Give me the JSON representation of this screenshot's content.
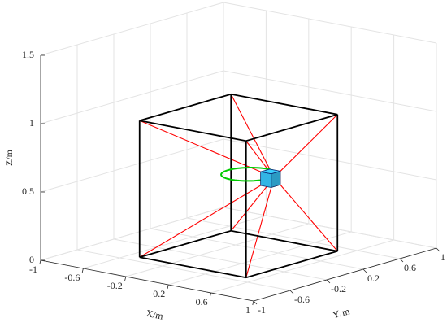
{
  "chart_data": {
    "type": "line3d",
    "xlabel": "X/m",
    "ylabel": "Y/m",
    "zlabel": "Z/m",
    "xlim": [
      -1,
      1
    ],
    "ylim": [
      -1,
      1
    ],
    "zlim": [
      0,
      1.5
    ],
    "xticks": [
      -1,
      -0.6,
      -0.2,
      0.2,
      0.6,
      1
    ],
    "yticks": [
      -1,
      -0.6,
      -0.2,
      0.2,
      0.6,
      1
    ],
    "zticks": [
      0,
      0.5,
      1,
      1.5
    ],
    "grid": true,
    "frame": {
      "color": "#000000",
      "x": [
        -0.5,
        0.5,
        0.5,
        -0.5,
        -0.5,
        null,
        -0.5,
        0.5,
        0.5,
        -0.5,
        -0.5,
        null,
        -0.5,
        -0.5,
        null,
        0.5,
        0.5,
        null,
        0.5,
        0.5,
        null,
        -0.5,
        -0.5
      ],
      "y": [
        -0.5,
        -0.5,
        0.5,
        0.5,
        -0.5,
        null,
        -0.5,
        -0.5,
        0.5,
        0.5,
        -0.5,
        null,
        -0.5,
        -0.5,
        null,
        -0.5,
        -0.5,
        null,
        0.5,
        0.5,
        null,
        0.5,
        0.5
      ],
      "z": [
        0,
        0,
        0,
        0,
        0,
        null,
        1,
        1,
        1,
        1,
        1,
        null,
        0,
        1,
        null,
        0,
        1,
        null,
        0,
        1,
        null,
        0,
        1
      ]
    },
    "cables": {
      "color": "#ff0000",
      "x": [
        -0.5,
        0.25,
        null,
        0.5,
        0.35,
        null,
        0.5,
        0.35,
        null,
        -0.5,
        0.25,
        null,
        -0.5,
        0.25,
        null,
        0.5,
        0.35,
        null,
        0.5,
        0.35,
        null,
        -0.5,
        0.25
      ],
      "y": [
        -0.5,
        -0.05,
        null,
        -0.5,
        -0.05,
        null,
        0.5,
        0.05,
        null,
        0.5,
        0.05,
        null,
        -0.5,
        -0.05,
        null,
        -0.5,
        -0.05,
        null,
        0.5,
        0.05,
        null,
        0.5,
        0.05
      ],
      "z": [
        0,
        0.55,
        null,
        0,
        0.55,
        null,
        0,
        0.55,
        null,
        0,
        0.55,
        null,
        1,
        0.65,
        null,
        1,
        0.65,
        null,
        1,
        0.65,
        null,
        1,
        0.65
      ]
    },
    "trajectory": {
      "color": "#00cc00",
      "center": [
        0.1,
        0,
        0.6
      ],
      "radius": 0.2
    },
    "platform": {
      "color": "#33b5e5",
      "center": [
        0.3,
        0,
        0.6
      ],
      "size": 0.1
    }
  }
}
